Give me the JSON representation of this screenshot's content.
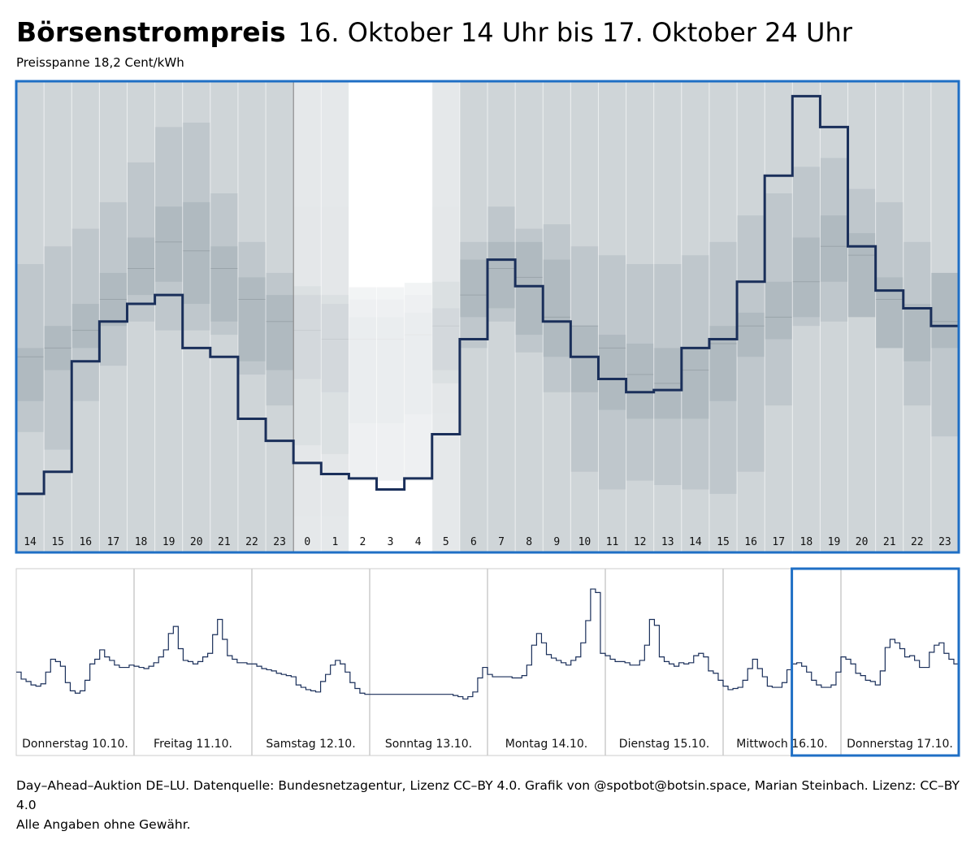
{
  "title": "Börsenstrompreis",
  "date_range": "16. Oktober 14 Uhr bis 17. Oktober 24 Uhr",
  "subtitle": "Preisspanne 18,2 Cent/kWh",
  "footer_line1": "Day–Ahead–Auktion DE–LU. Datenquelle: Bundesnetzagentur, Lizenz CC–BY 4.0. Grafik von @spotbot@botsin.space, Marian Steinbach. Lizenz: CC–BY 4.0",
  "footer_line2": "Alle Angaben ohne Gewähr.",
  "colors": {
    "frame": "#1f6fc5",
    "line": "#1a2f5a",
    "band_outer": "#cfd5d8",
    "band_mid": "#bfc7cc",
    "band_inner": "#b0bac0",
    "night_tint": "#ffffff"
  },
  "chart_data": [
    {
      "type": "line",
      "step": true,
      "description_units": "relative price, 0 = bottom of range, 100 = top of range",
      "ylim": [
        0,
        100
      ],
      "categories": [
        "14",
        "15",
        "16",
        "17",
        "18",
        "19",
        "20",
        "21",
        "22",
        "23",
        "0",
        "1",
        "2",
        "3",
        "4",
        "5",
        "6",
        "7",
        "8",
        "9",
        "10",
        "11",
        "12",
        "13",
        "14",
        "15",
        "16",
        "17",
        "18",
        "19",
        "20",
        "21",
        "22",
        "23"
      ],
      "values": [
        7,
        12,
        37,
        46,
        50,
        52,
        40,
        38,
        24,
        19,
        14,
        11.5,
        10.5,
        8,
        10.5,
        20.5,
        42,
        60,
        54,
        46,
        38,
        33,
        30,
        30.5,
        40,
        42,
        55,
        79,
        97,
        90,
        63,
        53,
        49,
        45
      ],
      "band_outer": [
        [
          7,
          100
        ],
        [
          12,
          100
        ],
        [
          12,
          100
        ],
        [
          12,
          100
        ],
        [
          12,
          100
        ],
        [
          12,
          100
        ],
        [
          12,
          100
        ],
        [
          12,
          100
        ],
        [
          12,
          100
        ],
        [
          12,
          100
        ],
        [
          12,
          100
        ],
        [
          12,
          100
        ],
        [
          12,
          100
        ],
        [
          12,
          100
        ],
        [
          12,
          100
        ],
        [
          12,
          100
        ],
        [
          12,
          100
        ],
        [
          12,
          100
        ],
        [
          12,
          100
        ],
        [
          12,
          100
        ],
        [
          12,
          100
        ],
        [
          12,
          100
        ],
        [
          12,
          100
        ],
        [
          12,
          100
        ],
        [
          12,
          100
        ],
        [
          12,
          100
        ],
        [
          12,
          100
        ],
        [
          12,
          100
        ],
        [
          12,
          100
        ],
        [
          12,
          100
        ],
        [
          12,
          100
        ],
        [
          12,
          100
        ],
        [
          12,
          100
        ],
        [
          12,
          100
        ]
      ],
      "band_mid": [
        [
          21,
          59
        ],
        [
          17,
          63
        ],
        [
          28,
          67
        ],
        [
          36,
          73
        ],
        [
          46,
          82
        ],
        [
          44,
          90
        ],
        [
          44,
          91
        ],
        [
          43,
          75
        ],
        [
          34,
          64
        ],
        [
          27,
          57
        ],
        [
          18,
          54
        ],
        [
          16,
          52
        ],
        [
          10,
          51
        ],
        [
          10,
          51
        ],
        [
          10,
          52
        ],
        [
          32,
          55
        ],
        [
          40,
          64
        ],
        [
          46,
          72
        ],
        [
          39,
          67
        ],
        [
          30,
          68
        ],
        [
          12,
          63
        ],
        [
          8,
          61
        ],
        [
          10,
          59
        ],
        [
          9,
          59
        ],
        [
          8,
          61
        ],
        [
          7,
          64
        ],
        [
          12,
          70
        ],
        [
          27,
          75
        ],
        [
          45,
          81
        ],
        [
          46,
          83
        ],
        [
          54,
          76
        ],
        [
          47,
          73
        ],
        [
          27,
          64
        ],
        [
          20,
          56
        ]
      ],
      "band_inner": [
        [
          28,
          40
        ],
        [
          35,
          45
        ],
        [
          40,
          50
        ],
        [
          45,
          57
        ],
        [
          52,
          65
        ],
        [
          55,
          72
        ],
        [
          50,
          73
        ],
        [
          46,
          63
        ],
        [
          37,
          56
        ],
        [
          35,
          52
        ],
        [
          33,
          52
        ],
        [
          30,
          50
        ],
        [
          23,
          47
        ],
        [
          23,
          47
        ],
        [
          25,
          48
        ],
        [
          35,
          49
        ],
        [
          47,
          60
        ],
        [
          49,
          64
        ],
        [
          43,
          64
        ],
        [
          38,
          60
        ],
        [
          30,
          45
        ],
        [
          26,
          43
        ],
        [
          24,
          41
        ],
        [
          24,
          40
        ],
        [
          24,
          40
        ],
        [
          28,
          45
        ],
        [
          38,
          48
        ],
        [
          42,
          55
        ],
        [
          47,
          65
        ],
        [
          55,
          70
        ],
        [
          47,
          66
        ],
        [
          40,
          56
        ],
        [
          37,
          50
        ],
        [
          40,
          57
        ]
      ],
      "band_median": [
        38,
        40,
        44,
        51,
        58,
        64,
        62,
        58,
        51,
        46,
        44,
        42,
        42,
        42,
        43,
        45,
        52,
        58,
        56,
        47,
        45,
        40,
        34,
        32,
        35,
        41,
        45,
        47,
        55,
        63,
        61,
        51,
        49,
        46
      ],
      "night_hours": [
        10,
        11,
        12,
        13,
        14,
        15
      ],
      "bright_hours": [
        12,
        13,
        14
      ]
    },
    {
      "type": "line",
      "step": true,
      "description_units": "relative price, 0 = bottom, 100 = top",
      "ylim": [
        0,
        100
      ],
      "days": [
        "Donnerstag 10.10.",
        "Freitag 11.10.",
        "Samstag 12.10.",
        "Sonntag 13.10.",
        "Montag 14.10.",
        "Dienstag 15.10.",
        "Mittwoch 16.10.",
        "Donnerstag 17.10."
      ],
      "highlight_range": [
        "Mittwoch 16.10. 14 Uhr",
        "Donnerstag 17.10. 24 Uhr"
      ],
      "values": [
        47,
        41,
        39,
        36,
        35,
        37,
        47,
        58,
        56,
        52,
        38,
        31,
        29,
        31,
        40,
        54,
        58,
        66,
        60,
        57,
        53,
        51,
        51,
        53,
        52,
        51,
        50,
        52,
        55,
        60,
        66,
        80,
        86,
        67,
        57,
        56,
        54,
        56,
        60,
        63,
        79,
        92,
        75,
        61,
        58,
        55,
        55,
        54,
        54,
        52,
        50,
        49,
        48,
        46,
        45,
        44,
        43,
        36,
        34,
        32,
        31,
        30,
        39,
        45,
        53,
        57,
        54,
        47,
        38,
        33,
        29,
        28,
        28,
        28,
        28,
        28,
        28,
        28,
        28,
        28,
        28,
        28,
        28,
        28,
        28,
        28,
        28,
        28,
        28,
        27,
        26,
        24,
        26,
        30,
        42,
        51,
        45,
        43,
        43,
        43,
        43,
        42,
        42,
        44,
        53,
        70,
        80,
        72,
        62,
        59,
        57,
        55,
        53,
        57,
        60,
        72,
        91,
        118,
        115,
        63,
        61,
        58,
        56,
        56,
        55,
        53,
        53,
        57,
        70,
        92,
        87,
        60,
        56,
        54,
        52,
        55,
        54,
        55,
        61,
        63,
        60,
        48,
        46,
        40,
        35,
        32,
        33,
        34,
        40,
        50,
        58,
        50,
        43,
        35,
        34,
        34,
        38,
        49,
        54,
        55,
        52,
        47,
        40,
        36,
        34,
        34,
        36,
        47,
        60,
        58,
        54,
        46,
        44,
        40,
        39,
        36,
        48,
        68,
        75,
        72,
        67,
        60,
        61,
        57,
        51,
        51,
        64,
        70,
        72,
        63,
        58,
        54
      ]
    }
  ]
}
